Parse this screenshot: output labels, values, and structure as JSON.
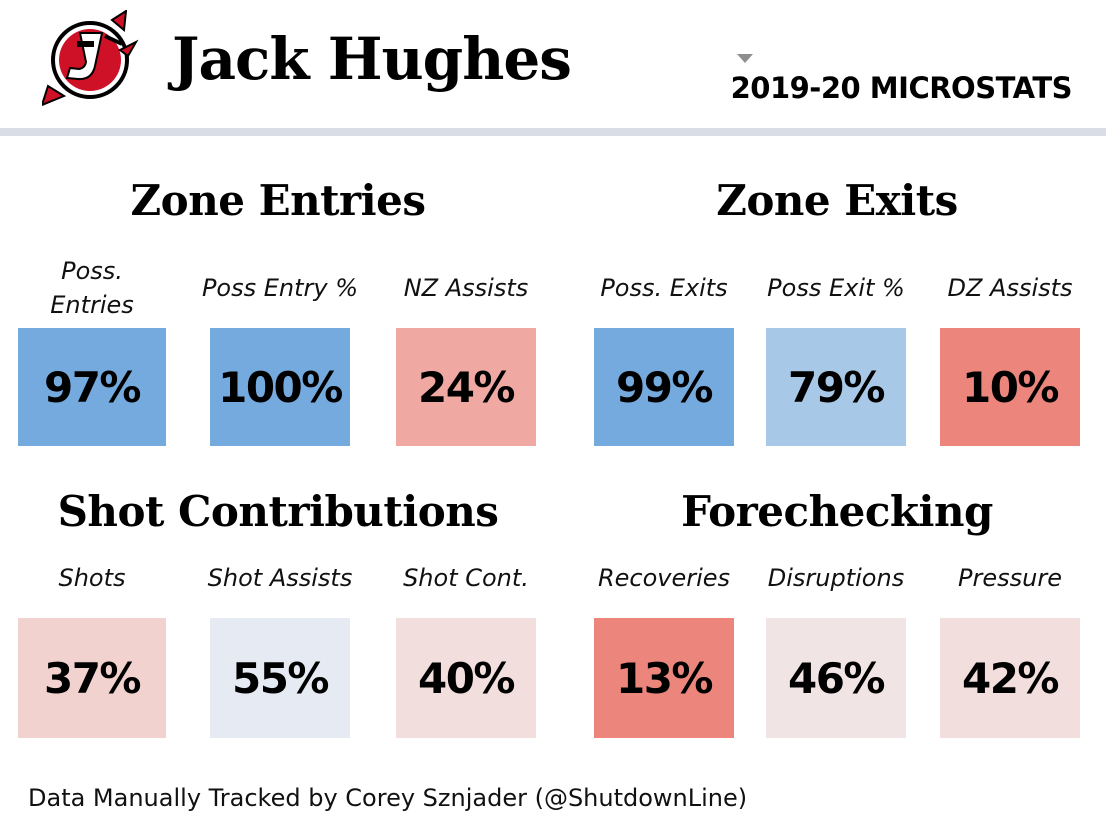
{
  "header": {
    "player_name": "Jack Hughes",
    "season_label": "2019-20 MICROSTATS",
    "logo_icon": "new-jersey-devils-logo-icon",
    "dropdown_icon": "chevron-down-icon"
  },
  "colors": {
    "strong_blue": "#74aade",
    "light_blue": "#a8c8e8",
    "pale_blue": "#e6eaf2",
    "strong_red": "#ec867c",
    "mid_red": "#f0a9a2",
    "pale_red": "#f2d2cf",
    "faint_red": "#f2dfdd",
    "lightest_red": "#f1e4e4",
    "header_rule": "#d9dee6",
    "logo_red": "#ce1126"
  },
  "sections": {
    "zone_entries": {
      "title": "Zone Entries",
      "metrics": [
        {
          "label": "Poss. Entries",
          "value": "97%",
          "color": "#74aade"
        },
        {
          "label": "Poss Entry %",
          "value": "100%",
          "color": "#74aade"
        },
        {
          "label": "NZ Assists",
          "value": "24%",
          "color": "#f0a9a2"
        }
      ]
    },
    "zone_exits": {
      "title": "Zone Exits",
      "metrics": [
        {
          "label": "Poss. Exits",
          "value": "99%",
          "color": "#74aade"
        },
        {
          "label": "Poss Exit %",
          "value": "79%",
          "color": "#a8c8e8"
        },
        {
          "label": "DZ Assists",
          "value": "10%",
          "color": "#ec867c"
        }
      ]
    },
    "shot_contributions": {
      "title": "Shot Contributions",
      "metrics": [
        {
          "label": "Shots",
          "value": "37%",
          "color": "#f2d2cf"
        },
        {
          "label": "Shot Assists",
          "value": "55%",
          "color": "#e6eaf2"
        },
        {
          "label": "Shot Cont.",
          "value": "40%",
          "color": "#f2dfdd"
        }
      ]
    },
    "forechecking": {
      "title": "Forechecking",
      "metrics": [
        {
          "label": "Recoveries",
          "value": "13%",
          "color": "#ec867c"
        },
        {
          "label": "Disruptions",
          "value": "46%",
          "color": "#f1e4e4"
        },
        {
          "label": "Pressure",
          "value": "42%",
          "color": "#f2dfdd"
        }
      ]
    }
  },
  "footer": {
    "credit": "Data Manually Tracked by Corey Sznjader (@ShutdownLine)"
  }
}
